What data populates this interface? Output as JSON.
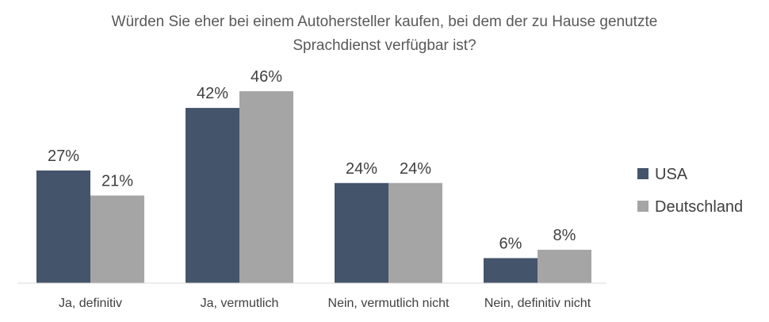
{
  "chart_data": {
    "type": "bar",
    "title_lines": [
      "Würden Sie eher bei einem Autohersteller kaufen, bei dem der zu Hause genutzte",
      "Sprachdienst verfügbar ist?"
    ],
    "categories": [
      "Ja, definitiv",
      "Ja, vermutlich",
      "Nein, vermutlich nicht",
      "Nein, definitiv nicht"
    ],
    "series": [
      {
        "name": "USA",
        "values": [
          27,
          42,
          24,
          6
        ],
        "labels": [
          "27%",
          "42%",
          "24%",
          "6%"
        ],
        "color": "#44546a"
      },
      {
        "name": "Deutschland",
        "values": [
          21,
          46,
          24,
          8
        ],
        "labels": [
          "21%",
          "46%",
          "24%",
          "8%"
        ],
        "color": "#a5a5a5"
      }
    ],
    "ylim": [
      0,
      50
    ],
    "unit": "%",
    "legend_position": "right",
    "grid": false,
    "axis_color": "#d9d9d9"
  }
}
